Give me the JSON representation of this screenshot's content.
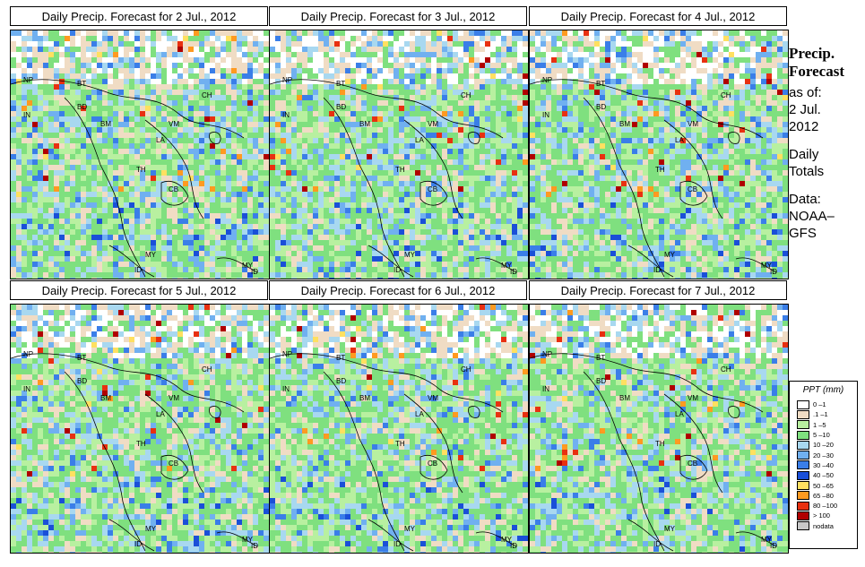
{
  "panels": [
    {
      "title": "Daily Precip. Forecast for  2 Jul., 2012"
    },
    {
      "title": "Daily Precip. Forecast for  3 Jul., 2012"
    },
    {
      "title": "Daily Precip. Forecast for  4 Jul., 2012"
    },
    {
      "title": "Daily Precip. Forecast for  5 Jul., 2012"
    },
    {
      "title": "Daily Precip. Forecast for  6 Jul., 2012"
    },
    {
      "title": "Daily Precip. Forecast for  7 Jul., 2012"
    }
  ],
  "country_labels": [
    "NP",
    "BT",
    "BD",
    "IN",
    "CH",
    "BM",
    "VM",
    "LA",
    "TH",
    "CB",
    "MY",
    "ID",
    "MY",
    "ID",
    "CH"
  ],
  "sidebar": {
    "title_line1": "Precip.",
    "title_line2": "Forecast",
    "asof": "as of:",
    "date_line1": "2 Jul.",
    "date_line2": "2012",
    "daily": "Daily",
    "totals": "Totals",
    "data_label": "Data:",
    "source_line1": "NOAA–",
    "source_line2": "GFS"
  },
  "legend": {
    "title": "PPT (mm)",
    "items": [
      {
        "label": "0 –1",
        "color": "#ffffff"
      },
      {
        "label": ".1 –1",
        "color": "#f0dcc4"
      },
      {
        "label": "1 –5",
        "color": "#b8f0a0"
      },
      {
        "label": "5 –10",
        "color": "#7fe07f"
      },
      {
        "label": "10 –20",
        "color": "#a8d8f0"
      },
      {
        "label": "20 –30",
        "color": "#70b0f0"
      },
      {
        "label": "30 –40",
        "color": "#3a7ee8"
      },
      {
        "label": "40 –50",
        "color": "#1a4fd8"
      },
      {
        "label": "50 –65",
        "color": "#ffe060"
      },
      {
        "label": "65 –80",
        "color": "#ff9a20"
      },
      {
        "label": "80 –100",
        "color": "#e83010"
      },
      {
        "label": "> 100",
        "color": "#b00000"
      },
      {
        "label": "nodata",
        "color": "#c8c8c8"
      }
    ]
  }
}
